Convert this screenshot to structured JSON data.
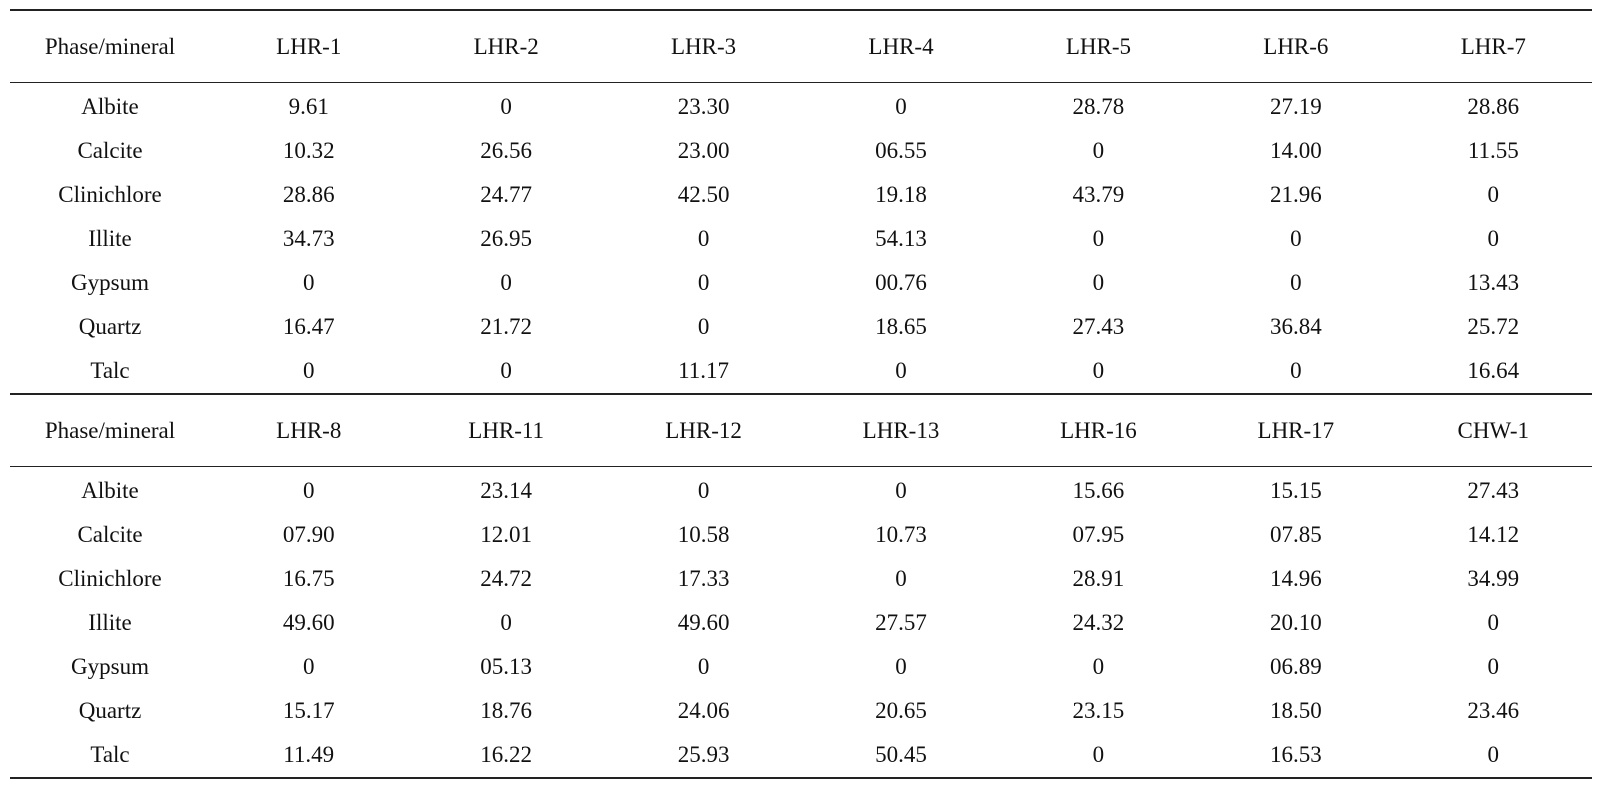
{
  "blocks": [
    {
      "headers": [
        "Phase/mineral",
        "LHR-1",
        "LHR-2",
        "LHR-3",
        "LHR-4",
        "LHR-5",
        "LHR-6",
        "LHR-7"
      ],
      "rows": [
        [
          "Albite",
          "9.61",
          "0",
          "23.30",
          "0",
          "28.78",
          "27.19",
          "28.86"
        ],
        [
          "Calcite",
          "10.32",
          "26.56",
          "23.00",
          "06.55",
          "0",
          "14.00",
          "11.55"
        ],
        [
          "Clinichlore",
          "28.86",
          "24.77",
          "42.50",
          "19.18",
          "43.79",
          "21.96",
          "0"
        ],
        [
          "Illite",
          "34.73",
          "26.95",
          "0",
          "54.13",
          "0",
          "0",
          "0"
        ],
        [
          "Gypsum",
          "0",
          "0",
          "0",
          "00.76",
          "0",
          "0",
          "13.43"
        ],
        [
          "Quartz",
          "16.47",
          "21.72",
          "0",
          "18.65",
          "27.43",
          "36.84",
          "25.72"
        ],
        [
          "Talc",
          "0",
          "0",
          "11.17",
          "0",
          "0",
          "0",
          "16.64"
        ]
      ]
    },
    {
      "headers": [
        "Phase/mineral",
        "LHR-8",
        "LHR-11",
        "LHR-12",
        "LHR-13",
        "LHR-16",
        "LHR-17",
        "CHW-1"
      ],
      "rows": [
        [
          "Albite",
          "0",
          "23.14",
          "0",
          "0",
          "15.66",
          "15.15",
          "27.43"
        ],
        [
          "Calcite",
          "07.90",
          "12.01",
          "10.58",
          "10.73",
          "07.95",
          "07.85",
          "14.12"
        ],
        [
          "Clinichlore",
          "16.75",
          "24.72",
          "17.33",
          "0",
          "28.91",
          "14.96",
          "34.99"
        ],
        [
          "Illite",
          "49.60",
          "0",
          "49.60",
          "27.57",
          "24.32",
          "20.10",
          "0"
        ],
        [
          "Gypsum",
          "0",
          "05.13",
          "0",
          "0",
          "0",
          "06.89",
          "0"
        ],
        [
          "Quartz",
          "15.17",
          "18.76",
          "24.06",
          "20.65",
          "23.15",
          "18.50",
          "23.46"
        ],
        [
          "Talc",
          "11.49",
          "16.22",
          "25.93",
          "50.45",
          "0",
          "16.53",
          "0"
        ]
      ]
    }
  ]
}
